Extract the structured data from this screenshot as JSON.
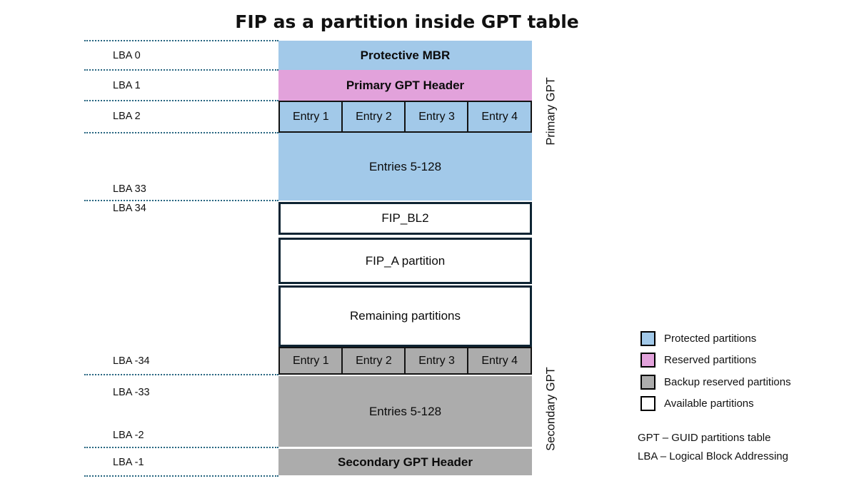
{
  "title": "FIP as a partition inside GPT table",
  "colors": {
    "protected": "#A2C9E9",
    "reserved": "#E2A2DB",
    "backup": "#ACACAC",
    "available": "#FFFFFF",
    "dotted_line": "#266580",
    "block_border": "#0E2433"
  },
  "lba_labels": {
    "lba0": "LBA 0",
    "lba1": "LBA 1",
    "lba2": "LBA 2",
    "lba33": "LBA 33",
    "lba34": "LBA 34",
    "lba_m34": "LBA -34",
    "lba_m33": "LBA -33",
    "lba_m2": "LBA -2",
    "lba_m1": "LBA -1"
  },
  "blocks": {
    "protective_mbr": "Protective MBR",
    "primary_gpt_header": "Primary GPT Header",
    "primary_entries": [
      "Entry 1",
      "Entry 2",
      "Entry 3",
      "Entry 4"
    ],
    "primary_entries_rest": "Entries 5-128",
    "fip_bl2": "FIP_BL2",
    "fip_a": "FIP_A partition",
    "remaining": "Remaining partitions",
    "secondary_entries": [
      "Entry 1",
      "Entry 2",
      "Entry 3",
      "Entry 4"
    ],
    "secondary_entries_rest": "Entries 5-128",
    "secondary_gpt_header": "Secondary GPT Header"
  },
  "side_labels": {
    "primary": "Primary GPT",
    "secondary": "Secondary GPT"
  },
  "legend": {
    "items": [
      {
        "label": "Protected partitions",
        "color": "#A2C9E9"
      },
      {
        "label": "Reserved partitions",
        "color": "#E2A2DB"
      },
      {
        "label": "Backup reserved partitions",
        "color": "#ACACAC"
      },
      {
        "label": "Available partitions",
        "color": "#FFFFFF"
      }
    ],
    "abbreviations": [
      "GPT – GUID partitions table",
      "LBA – Logical Block Addressing"
    ]
  }
}
